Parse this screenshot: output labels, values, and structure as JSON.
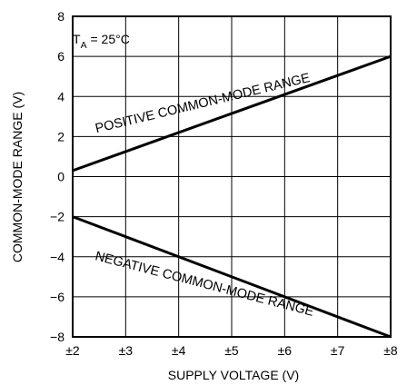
{
  "chart_data": {
    "type": "line",
    "xlabel": "SUPPLY VOLTAGE (V)",
    "ylabel": "COMMON-MODE RANGE (V)",
    "xlim": [
      2,
      8
    ],
    "ylim": [
      -8,
      8
    ],
    "x_ticks": [
      2,
      3,
      4,
      5,
      6,
      7,
      8
    ],
    "x_tick_labels": [
      "±2",
      "±3",
      "±4",
      "±5",
      "±6",
      "±7",
      "±8"
    ],
    "y_ticks": [
      -8,
      -6,
      -4,
      -2,
      0,
      2,
      4,
      6,
      8
    ],
    "y_tick_labels": [
      "−8",
      "−6",
      "−4",
      "−2",
      "0",
      "2",
      "4",
      "6",
      "8"
    ],
    "grid": true,
    "annotation": {
      "prefix": "T",
      "subscript": "A",
      "suffix": " = 25°C"
    },
    "series": [
      {
        "name": "POSITIVE COMMON-MODE RANGE",
        "x": [
          2,
          8
        ],
        "y": [
          0.3,
          6.0
        ]
      },
      {
        "name": "NEGATIVE COMMON-MODE RANGE",
        "x": [
          2,
          8
        ],
        "y": [
          -2.0,
          -8.0
        ]
      }
    ]
  }
}
